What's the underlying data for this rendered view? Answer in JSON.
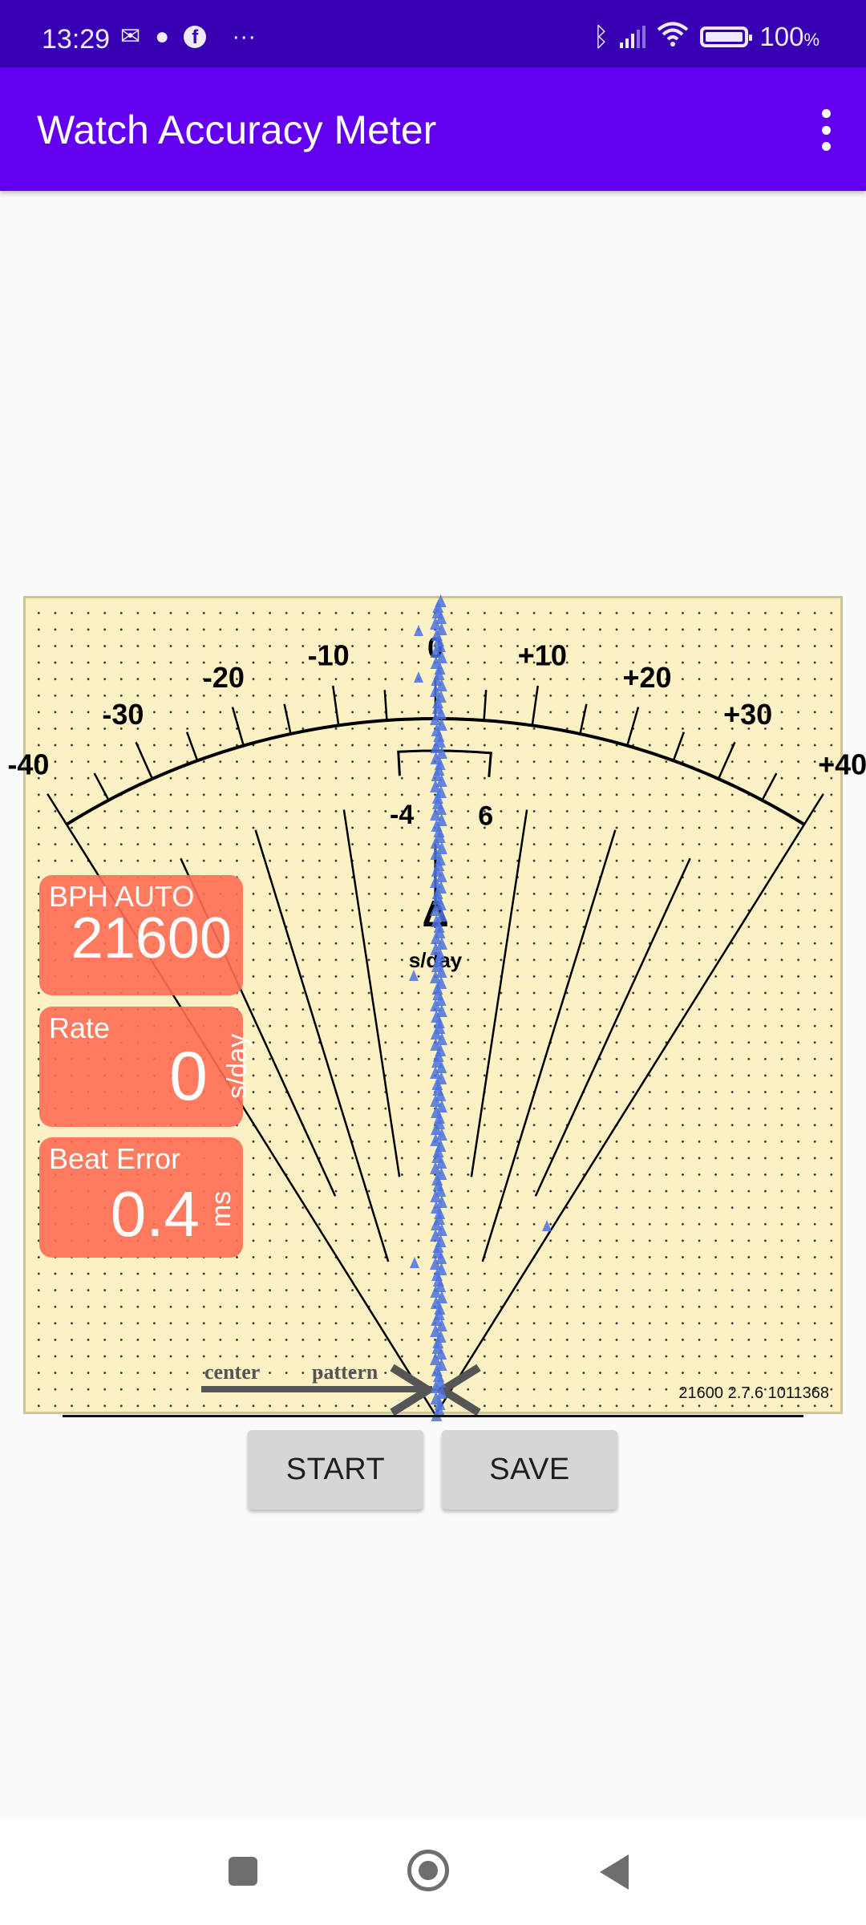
{
  "status_bar": {
    "time": "13:29",
    "notification_icons": [
      "outlook-icon",
      "reddit-icon",
      "facebook-icon",
      "more-dots-icon"
    ],
    "system_icons": [
      "bluetooth-icon",
      "signal-icon",
      "wifi-icon",
      "battery-icon"
    ],
    "battery": "100",
    "battery_unit": "%"
  },
  "app_bar": {
    "title": "Watch Accuracy Meter",
    "menu_icon": "overflow-menu-icon"
  },
  "meter": {
    "scale_labels": [
      {
        "value": -40,
        "text": "-40"
      },
      {
        "value": -30,
        "text": "-30"
      },
      {
        "value": -20,
        "text": "-20"
      },
      {
        "value": -10,
        "text": "-10"
      },
      {
        "value": 0,
        "text": "0"
      },
      {
        "value": 10,
        "text": "+10"
      },
      {
        "value": 20,
        "text": "+20"
      },
      {
        "value": 30,
        "text": "+30"
      },
      {
        "value": 40,
        "text": "+40"
      }
    ],
    "scale_range": [
      -40,
      40
    ],
    "tolerance_low": "-4",
    "tolerance_high": "6",
    "tolerance_range": [
      -4,
      6
    ],
    "delta_symbol": "Δ",
    "unit": "s/day",
    "center_label": "center",
    "pattern_label": "pattern",
    "version_text": "21600 2.7.6 1011368",
    "trace_color": "#4a72e0",
    "background_color": "#fbf1c4"
  },
  "readouts": {
    "bph": {
      "label": "BPH AUTO",
      "value": "21600"
    },
    "rate": {
      "label": "Rate",
      "value": "0",
      "unit": "s/day"
    },
    "beat_error": {
      "label": "Beat Error",
      "value": "0.4",
      "unit": "ms"
    },
    "box_color": "#ff6e55"
  },
  "buttons": {
    "start": "START",
    "save": "SAVE"
  },
  "nav_bar": {
    "icons": [
      "recents-square-icon",
      "home-circle-icon",
      "back-triangle-icon"
    ]
  }
}
